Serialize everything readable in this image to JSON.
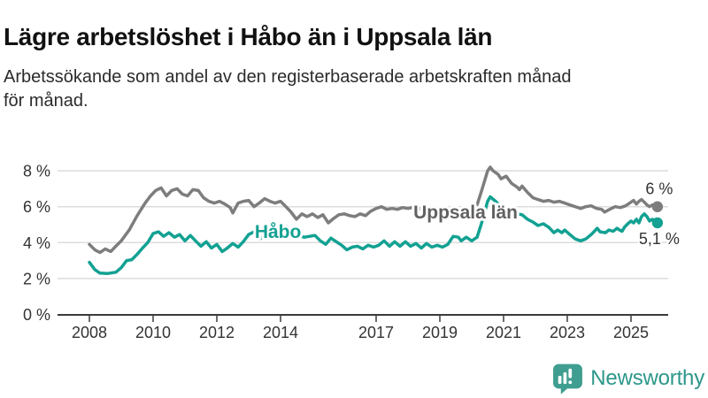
{
  "header": {
    "title": "Lägre arbetslöshet i Håbo än i Uppsala län",
    "subtitle": "Arbetssökande som andel av den registerbaserade arbetskraften månad\nför månad."
  },
  "chart_data": {
    "type": "line",
    "unit": "%",
    "grid": "horizontal",
    "x_axis": {
      "range": [
        2007.0,
        2026.2
      ],
      "ticks": [
        2008,
        2010,
        2012,
        2014,
        2017,
        2019,
        2021,
        2023,
        2025
      ]
    },
    "y_axis": {
      "range": [
        0,
        8.6
      ],
      "ticks": [
        {
          "value": 0,
          "label": "0 %"
        },
        {
          "value": 2,
          "label": "2 %"
        },
        {
          "value": 4,
          "label": "4 %"
        },
        {
          "value": 6,
          "label": "6 %"
        },
        {
          "value": 8,
          "label": "8 %"
        }
      ]
    },
    "styles": {
      "grid_color": "#dcdcdc",
      "axis_color": "#3b3b3b",
      "tick_label_color": "#333333",
      "annotation_color": "#333333"
    },
    "series": [
      {
        "id": "uppsala-lan",
        "name": "Uppsala län",
        "color": "#7d7d7d",
        "label_color": "#616161",
        "inline_label": {
          "text": "Uppsala län",
          "x": 2018.17,
          "y": 5.35
        },
        "end_label": {
          "text": "6 %",
          "placement": "above"
        },
        "points": [
          [
            2008.0,
            3.9
          ],
          [
            2008.17,
            3.6
          ],
          [
            2008.33,
            3.45
          ],
          [
            2008.5,
            3.65
          ],
          [
            2008.67,
            3.5
          ],
          [
            2008.83,
            3.8
          ],
          [
            2009.0,
            4.1
          ],
          [
            2009.25,
            4.7
          ],
          [
            2009.5,
            5.5
          ],
          [
            2009.75,
            6.2
          ],
          [
            2009.92,
            6.6
          ],
          [
            2010.08,
            6.9
          ],
          [
            2010.25,
            7.05
          ],
          [
            2010.42,
            6.6
          ],
          [
            2010.58,
            6.9
          ],
          [
            2010.75,
            7.0
          ],
          [
            2010.92,
            6.7
          ],
          [
            2011.08,
            6.6
          ],
          [
            2011.25,
            6.95
          ],
          [
            2011.42,
            6.9
          ],
          [
            2011.58,
            6.5
          ],
          [
            2011.75,
            6.3
          ],
          [
            2011.92,
            6.2
          ],
          [
            2012.08,
            6.3
          ],
          [
            2012.25,
            6.15
          ],
          [
            2012.42,
            5.95
          ],
          [
            2012.5,
            5.65
          ],
          [
            2012.67,
            6.2
          ],
          [
            2012.83,
            6.3
          ],
          [
            2013.0,
            6.35
          ],
          [
            2013.17,
            6.0
          ],
          [
            2013.33,
            6.2
          ],
          [
            2013.5,
            6.45
          ],
          [
            2013.67,
            6.3
          ],
          [
            2013.83,
            6.2
          ],
          [
            2014.0,
            6.3
          ],
          [
            2014.17,
            6.0
          ],
          [
            2014.33,
            5.7
          ],
          [
            2014.5,
            5.3
          ],
          [
            2014.67,
            5.6
          ],
          [
            2014.83,
            5.45
          ],
          [
            2015.0,
            5.6
          ],
          [
            2015.17,
            5.4
          ],
          [
            2015.33,
            5.55
          ],
          [
            2015.5,
            5.1
          ],
          [
            2015.67,
            5.35
          ],
          [
            2015.83,
            5.55
          ],
          [
            2016.0,
            5.6
          ],
          [
            2016.17,
            5.5
          ],
          [
            2016.33,
            5.45
          ],
          [
            2016.5,
            5.6
          ],
          [
            2016.67,
            5.5
          ],
          [
            2016.83,
            5.75
          ],
          [
            2017.0,
            5.9
          ],
          [
            2017.17,
            6.0
          ],
          [
            2017.33,
            5.85
          ],
          [
            2017.5,
            5.9
          ],
          [
            2017.67,
            5.85
          ],
          [
            2017.83,
            5.95
          ],
          [
            2018.0,
            5.9
          ],
          [
            2018.25,
            6.0
          ],
          [
            2018.5,
            5.8
          ],
          [
            2018.75,
            5.9
          ],
          [
            2019.0,
            5.8
          ],
          [
            2019.25,
            5.9
          ],
          [
            2019.5,
            5.7
          ],
          [
            2019.75,
            5.8
          ],
          [
            2020.0,
            5.9
          ],
          [
            2020.17,
            6.1
          ],
          [
            2020.33,
            7.0
          ],
          [
            2020.5,
            8.0
          ],
          [
            2020.58,
            8.2
          ],
          [
            2020.67,
            8.0
          ],
          [
            2020.83,
            7.8
          ],
          [
            2020.92,
            7.55
          ],
          [
            2021.08,
            7.7
          ],
          [
            2021.25,
            7.3
          ],
          [
            2021.42,
            7.1
          ],
          [
            2021.5,
            6.95
          ],
          [
            2021.58,
            7.15
          ],
          [
            2021.75,
            6.8
          ],
          [
            2021.92,
            6.5
          ],
          [
            2022.08,
            6.4
          ],
          [
            2022.25,
            6.3
          ],
          [
            2022.42,
            6.35
          ],
          [
            2022.58,
            6.25
          ],
          [
            2022.75,
            6.3
          ],
          [
            2022.92,
            6.2
          ],
          [
            2023.08,
            6.1
          ],
          [
            2023.25,
            6.0
          ],
          [
            2023.42,
            5.9
          ],
          [
            2023.58,
            6.0
          ],
          [
            2023.75,
            6.05
          ],
          [
            2023.92,
            5.9
          ],
          [
            2024.08,
            5.85
          ],
          [
            2024.17,
            5.7
          ],
          [
            2024.33,
            5.85
          ],
          [
            2024.5,
            6.0
          ],
          [
            2024.67,
            5.95
          ],
          [
            2024.83,
            6.05
          ],
          [
            2025.0,
            6.25
          ],
          [
            2025.08,
            6.35
          ],
          [
            2025.17,
            6.15
          ],
          [
            2025.25,
            6.3
          ],
          [
            2025.33,
            6.4
          ],
          [
            2025.42,
            6.25
          ],
          [
            2025.5,
            6.1
          ],
          [
            2025.58,
            6.0
          ],
          [
            2025.67,
            6.1
          ],
          [
            2025.83,
            6.0
          ]
        ]
      },
      {
        "id": "habo",
        "name": "Håbo",
        "color": "#12a192",
        "label_color": "#12a192",
        "inline_label": {
          "text": "Håbo",
          "x": 2013.19,
          "y": 4.26
        },
        "end_label": {
          "text": "5,1 %",
          "placement": "below"
        },
        "points": [
          [
            2008.0,
            2.9
          ],
          [
            2008.17,
            2.5
          ],
          [
            2008.33,
            2.3
          ],
          [
            2008.58,
            2.28
          ],
          [
            2008.83,
            2.35
          ],
          [
            2009.0,
            2.6
          ],
          [
            2009.17,
            3.0
          ],
          [
            2009.33,
            3.05
          ],
          [
            2009.5,
            3.35
          ],
          [
            2009.67,
            3.7
          ],
          [
            2009.83,
            4.0
          ],
          [
            2010.0,
            4.5
          ],
          [
            2010.17,
            4.6
          ],
          [
            2010.33,
            4.35
          ],
          [
            2010.5,
            4.55
          ],
          [
            2010.67,
            4.3
          ],
          [
            2010.83,
            4.45
          ],
          [
            2011.0,
            4.1
          ],
          [
            2011.17,
            4.4
          ],
          [
            2011.33,
            4.1
          ],
          [
            2011.5,
            3.8
          ],
          [
            2011.67,
            4.05
          ],
          [
            2011.83,
            3.7
          ],
          [
            2012.0,
            3.9
          ],
          [
            2012.17,
            3.5
          ],
          [
            2012.33,
            3.7
          ],
          [
            2012.5,
            3.95
          ],
          [
            2012.67,
            3.75
          ],
          [
            2012.83,
            4.05
          ],
          [
            2013.0,
            4.45
          ],
          [
            2013.17,
            4.6
          ],
          [
            2013.33,
            4.2
          ],
          [
            2013.5,
            4.35
          ],
          [
            2013.67,
            4.45
          ],
          [
            2013.83,
            4.25
          ],
          [
            2014.0,
            4.35
          ],
          [
            2014.25,
            4.5
          ],
          [
            2014.5,
            4.4
          ],
          [
            2014.75,
            4.3
          ],
          [
            2015.08,
            4.4
          ],
          [
            2015.25,
            4.1
          ],
          [
            2015.42,
            3.9
          ],
          [
            2015.58,
            4.25
          ],
          [
            2015.75,
            4.05
          ],
          [
            2015.92,
            3.85
          ],
          [
            2016.08,
            3.6
          ],
          [
            2016.25,
            3.75
          ],
          [
            2016.42,
            3.8
          ],
          [
            2016.58,
            3.65
          ],
          [
            2016.75,
            3.85
          ],
          [
            2016.92,
            3.75
          ],
          [
            2017.08,
            3.85
          ],
          [
            2017.25,
            4.1
          ],
          [
            2017.42,
            3.8
          ],
          [
            2017.58,
            4.05
          ],
          [
            2017.75,
            3.8
          ],
          [
            2017.92,
            4.05
          ],
          [
            2018.08,
            3.8
          ],
          [
            2018.25,
            3.95
          ],
          [
            2018.42,
            3.7
          ],
          [
            2018.58,
            3.95
          ],
          [
            2018.75,
            3.75
          ],
          [
            2018.92,
            3.85
          ],
          [
            2019.08,
            3.75
          ],
          [
            2019.25,
            3.9
          ],
          [
            2019.42,
            4.35
          ],
          [
            2019.58,
            4.3
          ],
          [
            2019.67,
            4.1
          ],
          [
            2019.83,
            4.3
          ],
          [
            2020.0,
            4.1
          ],
          [
            2020.17,
            4.3
          ],
          [
            2020.33,
            5.2
          ],
          [
            2020.5,
            6.3
          ],
          [
            2020.58,
            6.55
          ],
          [
            2020.75,
            6.3
          ],
          [
            2020.92,
            6.0
          ],
          [
            2021.08,
            5.9
          ],
          [
            2021.25,
            5.75
          ],
          [
            2021.42,
            5.6
          ],
          [
            2021.58,
            5.55
          ],
          [
            2021.75,
            5.3
          ],
          [
            2021.92,
            5.15
          ],
          [
            2022.08,
            4.95
          ],
          [
            2022.25,
            5.05
          ],
          [
            2022.42,
            4.85
          ],
          [
            2022.5,
            4.7
          ],
          [
            2022.58,
            4.55
          ],
          [
            2022.7,
            4.7
          ],
          [
            2022.83,
            4.55
          ],
          [
            2022.92,
            4.7
          ],
          [
            2023.08,
            4.45
          ],
          [
            2023.25,
            4.2
          ],
          [
            2023.42,
            4.1
          ],
          [
            2023.58,
            4.2
          ],
          [
            2023.75,
            4.45
          ],
          [
            2023.86,
            4.65
          ],
          [
            2023.94,
            4.8
          ],
          [
            2024.03,
            4.6
          ],
          [
            2024.2,
            4.55
          ],
          [
            2024.3,
            4.7
          ],
          [
            2024.44,
            4.63
          ],
          [
            2024.56,
            4.8
          ],
          [
            2024.64,
            4.7
          ],
          [
            2024.72,
            4.63
          ],
          [
            2024.8,
            4.87
          ],
          [
            2024.9,
            5.05
          ],
          [
            2025.0,
            5.2
          ],
          [
            2025.08,
            5.1
          ],
          [
            2025.17,
            5.3
          ],
          [
            2025.25,
            5.1
          ],
          [
            2025.33,
            5.45
          ],
          [
            2025.42,
            5.6
          ],
          [
            2025.5,
            5.45
          ],
          [
            2025.58,
            5.2
          ],
          [
            2025.67,
            5.3
          ],
          [
            2025.83,
            5.1
          ]
        ]
      }
    ]
  },
  "footer": {
    "logo_text": "Newsworthy",
    "logo_color": "#2d978a",
    "logo_icon_color": "#3f9e90"
  }
}
